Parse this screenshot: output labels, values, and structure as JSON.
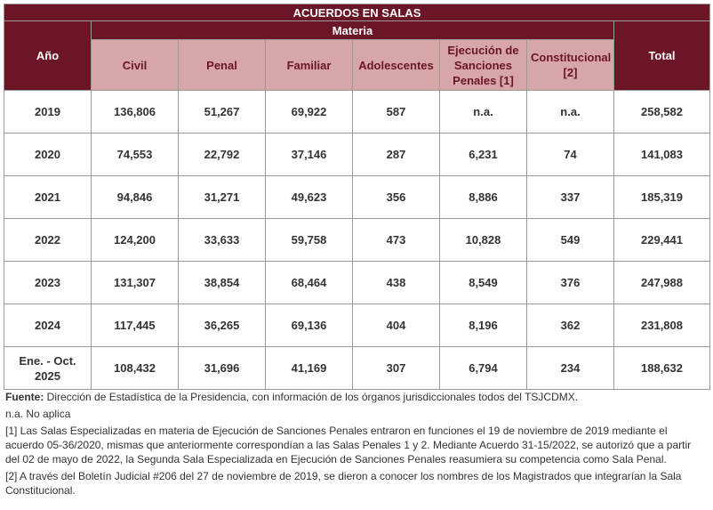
{
  "table": {
    "title": "ACUERDOS EN SALAS",
    "year_header": "Año",
    "group_header": "Materia",
    "total_header": "Total",
    "columns": [
      "Civil",
      "Penal",
      "Familiar",
      "Adolescentes",
      "Ejecución de Sanciones Penales [1]",
      "Constitucional [2]"
    ],
    "rows": [
      {
        "year": "2019",
        "values": [
          "136,806",
          "51,267",
          "69,922",
          "587",
          "n.a.",
          "n.a."
        ],
        "total": "258,582"
      },
      {
        "year": "2020",
        "values": [
          "74,553",
          "22,792",
          "37,146",
          "287",
          "6,231",
          "74"
        ],
        "total": "141,083"
      },
      {
        "year": "2021",
        "values": [
          "94,846",
          "31,271",
          "49,623",
          "356",
          "8,886",
          "337"
        ],
        "total": "185,319"
      },
      {
        "year": "2022",
        "values": [
          "124,200",
          "33,633",
          "59,758",
          "473",
          "10,828",
          "549"
        ],
        "total": "229,441"
      },
      {
        "year": "2023",
        "values": [
          "131,307",
          "38,854",
          "68,464",
          "438",
          "8,549",
          "376"
        ],
        "total": "247,988"
      },
      {
        "year": "2024",
        "values": [
          "117,445",
          "36,265",
          "69,136",
          "404",
          "8,196",
          "362"
        ],
        "total": "231,808"
      },
      {
        "year": "Ene. - Oct. 2025",
        "values": [
          "108,432",
          "31,696",
          "41,169",
          "307",
          "6,794",
          "234"
        ],
        "total": "188,632"
      }
    ]
  },
  "notes": {
    "source_label": "Fuente:",
    "source_text": " Dirección de Estadística de la Presidencia, con información de los órganos jurisdiccionales todos del TSJCDMX.",
    "na": "n.a. No aplica",
    "note1": "[1] Las Salas Especializadas en materia de Ejecución de Sanciones Penales entraron en funciones el 19 de noviembre de 2019 mediante el acuerdo 05-36/2020, mismas que anteriormente correspondían a las Salas Penales 1 y 2. Mediante Acuerdo 31-15/2022,  se autorizó que a partir del 02 de mayo de 2022, la Segunda Sala Especializada en Ejecución de Sanciones Penales reasumiera su competencia como Sala Penal.",
    "note2": "[2] A través del Boletín Judicial #206 del 27 de noviembre de 2019, se dieron a conocer los nombres de los Magistrados que integrarían la Sala Constitucional."
  }
}
